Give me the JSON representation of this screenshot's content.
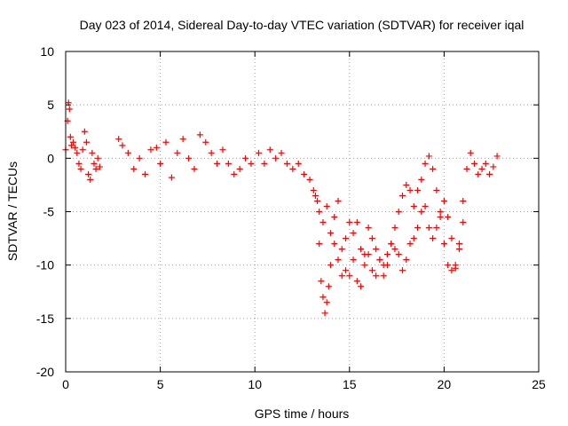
{
  "chart_data": {
    "type": "scatter",
    "title": "Day 023 of 2014, Sidereal Day-to-day VTEC variation (SDTVAR) for receiver iqal",
    "xlabel": "GPS time / hours",
    "ylabel": "SDTVAR / TECUs",
    "xlim": [
      0,
      25
    ],
    "ylim": [
      -20,
      10
    ],
    "xticks": [
      0,
      5,
      10,
      15,
      20,
      25
    ],
    "xtick_labels": [
      "0",
      "5",
      "10",
      "15",
      "20",
      "25"
    ],
    "yticks": [
      10,
      5,
      0,
      -5,
      -10,
      -15,
      -20
    ],
    "ytick_labels": [
      "10",
      "5",
      "0",
      "-5",
      "-10",
      "-15",
      "-20"
    ],
    "grid": true,
    "marker": "+",
    "series": [
      {
        "name": "SDTVAR",
        "color": "#ff0000",
        "x": [
          0.0,
          0.1,
          0.15,
          0.2,
          0.25,
          0.3,
          0.4,
          0.5,
          0.6,
          0.7,
          0.8,
          0.9,
          1.0,
          1.1,
          1.2,
          1.3,
          1.4,
          1.5,
          1.6,
          1.7,
          1.8,
          2.8,
          3.0,
          3.3,
          3.6,
          3.9,
          4.2,
          4.5,
          4.8,
          5.0,
          5.3,
          5.6,
          5.9,
          6.2,
          6.5,
          6.8,
          7.1,
          7.4,
          7.7,
          8.0,
          8.3,
          8.6,
          8.9,
          9.2,
          9.5,
          9.8,
          10.2,
          10.5,
          10.8,
          11.1,
          11.4,
          11.7,
          12.0,
          12.3,
          12.6,
          12.9,
          13.1,
          13.3,
          13.4,
          13.5,
          13.6,
          13.7,
          13.8,
          13.9,
          14.0,
          14.2,
          14.4,
          14.6,
          14.8,
          15.0,
          15.2,
          15.4,
          15.6,
          15.8,
          16.0,
          16.2,
          16.4,
          16.6,
          16.8,
          17.0,
          17.2,
          17.4,
          17.6,
          17.8,
          18.0,
          18.2,
          18.4,
          18.6,
          18.8,
          19.0,
          19.2,
          19.4,
          19.6,
          19.8,
          20.0,
          20.2,
          20.4,
          20.6,
          20.8,
          21.0,
          21.2,
          21.4,
          21.6,
          21.8,
          22.0,
          22.2,
          22.4,
          22.6,
          22.8,
          13.2,
          13.4,
          13.6,
          13.8,
          14.0,
          14.2,
          14.4,
          14.6,
          14.8,
          15.0,
          15.2,
          15.4,
          15.6,
          15.8,
          16.0,
          16.2,
          16.4,
          16.6,
          16.8,
          17.0,
          17.2,
          17.4,
          17.6,
          17.8,
          18.0,
          18.2,
          18.4,
          18.6,
          18.8,
          19.0,
          19.2,
          19.4,
          19.6,
          19.8,
          20.0,
          20.2,
          20.4,
          20.6,
          20.8,
          21.0
        ],
        "y": [
          0.8,
          3.5,
          5.2,
          4.6,
          2.0,
          1.2,
          1.5,
          1.0,
          0.5,
          -0.5,
          -1.0,
          0.8,
          2.5,
          1.5,
          -1.5,
          -2.0,
          0.5,
          -0.5,
          -1.0,
          0.0,
          -0.8,
          1.8,
          1.2,
          0.5,
          -1.0,
          0.0,
          -1.5,
          0.8,
          1.0,
          -0.5,
          1.5,
          -1.8,
          0.5,
          1.8,
          0.0,
          -1.0,
          2.2,
          1.5,
          0.5,
          -0.5,
          0.8,
          -0.5,
          -1.5,
          -1.0,
          0.0,
          -0.5,
          0.5,
          -0.5,
          0.8,
          0.0,
          0.5,
          -0.5,
          -1.0,
          -0.5,
          -1.5,
          -2.0,
          -3.0,
          -4.0,
          -8.0,
          -11.5,
          -13.0,
          -14.5,
          -13.5,
          -12.0,
          -10.0,
          -8.0,
          -9.5,
          -11.0,
          -7.5,
          -6.0,
          -9.5,
          -11.5,
          -12.0,
          -9.0,
          -6.5,
          -10.5,
          -11.0,
          -9.5,
          -11.0,
          -10.0,
          -8.0,
          -6.5,
          -5.0,
          -3.5,
          -2.5,
          -3.0,
          -4.5,
          -3.0,
          -2.0,
          -0.5,
          0.2,
          -1.0,
          -3.0,
          -5.5,
          -8.0,
          -10.0,
          -10.5,
          -10.3,
          -8.5,
          -4.0,
          -1.0,
          0.5,
          -0.5,
          -1.5,
          -1.0,
          -0.5,
          -1.5,
          -0.8,
          0.2,
          -3.5,
          -5.0,
          -6.0,
          -4.5,
          -7.0,
          -5.5,
          -4.0,
          -8.5,
          -10.5,
          -11.0,
          -7.0,
          -6.0,
          -8.5,
          -10.0,
          -9.0,
          -7.5,
          -8.5,
          -9.5,
          -10.0,
          -9.0,
          -8.0,
          -8.5,
          -9.0,
          -10.5,
          -9.5,
          -8.0,
          -7.5,
          -6.5,
          -5.0,
          -4.5,
          -6.5,
          -7.5,
          -6.5,
          -5.0,
          -4.0,
          -5.5,
          -7.5,
          -10.0,
          -8.0,
          -6.0
        ]
      }
    ]
  }
}
